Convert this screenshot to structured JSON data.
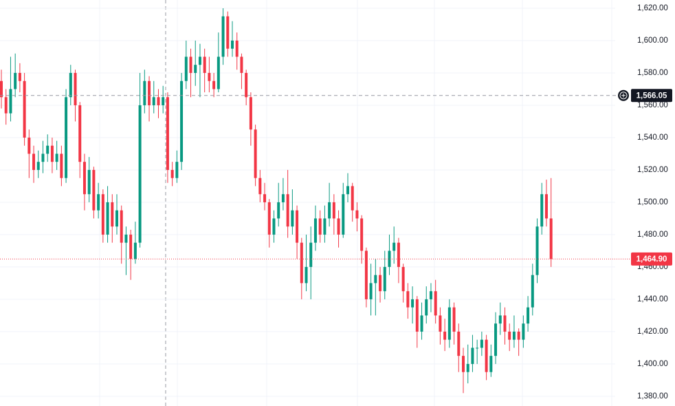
{
  "chart_data": {
    "type": "candlestick",
    "up_color": "#089981",
    "down_color": "#f23645",
    "ylim": [
      1374,
      1625.1
    ],
    "yticks": [
      {
        "value": 1380,
        "label": "1,380.00"
      },
      {
        "value": 1400,
        "label": "1,400.00"
      },
      {
        "value": 1420,
        "label": "1,420.00"
      },
      {
        "value": 1440,
        "label": "1,440.00"
      },
      {
        "value": 1460,
        "label": "1,460.00"
      },
      {
        "value": 1480,
        "label": "1,480.00"
      },
      {
        "value": 1500,
        "label": "1,500.00"
      },
      {
        "value": 1520,
        "label": "1,520.00"
      },
      {
        "value": 1540,
        "label": "1,540.00"
      },
      {
        "value": 1560,
        "label": "1,560.00"
      },
      {
        "value": 1580,
        "label": "1,580.00"
      },
      {
        "value": 1600,
        "label": "1,600.00"
      },
      {
        "value": 1620,
        "label": "1,620.00"
      }
    ],
    "grid": true,
    "crosshair": {
      "value": 1566.05,
      "label": "1,566.05"
    },
    "last_price": {
      "value": 1464.9,
      "label": "1,464.90"
    },
    "open": [
      1575,
      1565,
      1555,
      1570,
      1580,
      1575,
      1540,
      1530,
      1520,
      1525,
      1530,
      1535,
      1525,
      1530,
      1515,
      1565,
      1580,
      1560,
      1525,
      1505,
      1520,
      1495,
      1505,
      1480,
      1500,
      1485,
      1495,
      1475,
      1480,
      1465,
      1475,
      1560,
      1575,
      1560,
      1565,
      1560,
      1565,
      1520,
      1515,
      1525,
      1575,
      1590,
      1580,
      1585,
      1590,
      1580,
      1575,
      1570,
      1590,
      1615,
      1595,
      1600,
      1590,
      1580,
      1565,
      1545,
      1515,
      1505,
      1500,
      1480,
      1490,
      1500,
      1505,
      1485,
      1495,
      1475,
      1450,
      1460,
      1475,
      1490,
      1480,
      1490,
      1500,
      1490,
      1480,
      1505,
      1510,
      1495,
      1490,
      1470,
      1440,
      1450,
      1455,
      1445,
      1460,
      1470,
      1475,
      1460,
      1445,
      1435,
      1440,
      1420,
      1430,
      1440,
      1445,
      1430,
      1420,
      1415,
      1435,
      1420,
      1405,
      1395,
      1400,
      1410,
      1410,
      1415,
      1395,
      1405,
      1425,
      1430,
      1420,
      1415,
      1420,
      1415,
      1425,
      1435,
      1455,
      1485,
      1505,
      1490
    ],
    "high": [
      1582,
      1570,
      1590,
      1592,
      1586,
      1580,
      1545,
      1535,
      1532,
      1538,
      1542,
      1540,
      1538,
      1535,
      1570,
      1585,
      1582,
      1562,
      1530,
      1528,
      1522,
      1512,
      1508,
      1510,
      1505,
      1505,
      1498,
      1485,
      1483,
      1488,
      1580,
      1582,
      1578,
      1575,
      1570,
      1572,
      1568,
      1525,
      1532,
      1580,
      1600,
      1595,
      1600,
      1598,
      1595,
      1590,
      1580,
      1605,
      1620,
      1618,
      1612,
      1605,
      1592,
      1582,
      1568,
      1548,
      1520,
      1512,
      1502,
      1495,
      1512,
      1515,
      1520,
      1508,
      1498,
      1478,
      1480,
      1485,
      1498,
      1495,
      1498,
      1512,
      1505,
      1495,
      1512,
      1518,
      1512,
      1500,
      1492,
      1472,
      1462,
      1465,
      1460,
      1470,
      1480,
      1485,
      1478,
      1462,
      1450,
      1448,
      1442,
      1438,
      1448,
      1450,
      1452,
      1435,
      1428,
      1440,
      1438,
      1425,
      1410,
      1412,
      1418,
      1415,
      1420,
      1418,
      1412,
      1432,
      1438,
      1435,
      1425,
      1430,
      1422,
      1430,
      1442,
      1462,
      1490,
      1512,
      1514,
      1515
    ],
    "low": [
      1558,
      1548,
      1550,
      1565,
      1568,
      1535,
      1515,
      1512,
      1515,
      1518,
      1525,
      1518,
      1520,
      1510,
      1512,
      1560,
      1550,
      1515,
      1495,
      1500,
      1490,
      1490,
      1475,
      1475,
      1475,
      1480,
      1462,
      1455,
      1452,
      1462,
      1472,
      1555,
      1550,
      1555,
      1552,
      1555,
      1512,
      1510,
      1512,
      1520,
      1570,
      1565,
      1572,
      1565,
      1568,
      1568,
      1565,
      1568,
      1585,
      1590,
      1590,
      1582,
      1570,
      1560,
      1535,
      1510,
      1500,
      1495,
      1472,
      1475,
      1485,
      1495,
      1478,
      1480,
      1465,
      1440,
      1445,
      1440,
      1470,
      1475,
      1475,
      1485,
      1480,
      1472,
      1478,
      1500,
      1488,
      1482,
      1462,
      1435,
      1430,
      1430,
      1438,
      1440,
      1455,
      1462,
      1450,
      1438,
      1428,
      1425,
      1410,
      1415,
      1425,
      1432,
      1425,
      1412,
      1408,
      1410,
      1412,
      1395,
      1382,
      1388,
      1395,
      1400,
      1405,
      1390,
      1392,
      1400,
      1418,
      1412,
      1408,
      1410,
      1405,
      1410,
      1420,
      1430,
      1450,
      1480,
      1485,
      1460
    ],
    "close": [
      1565,
      1555,
      1570,
      1580,
      1575,
      1540,
      1530,
      1520,
      1525,
      1530,
      1535,
      1525,
      1530,
      1515,
      1565,
      1580,
      1560,
      1525,
      1505,
      1520,
      1495,
      1505,
      1480,
      1500,
      1485,
      1495,
      1475,
      1480,
      1465,
      1475,
      1560,
      1575,
      1560,
      1565,
      1560,
      1565,
      1520,
      1515,
      1525,
      1575,
      1590,
      1580,
      1585,
      1590,
      1580,
      1575,
      1570,
      1590,
      1615,
      1595,
      1600,
      1590,
      1580,
      1565,
      1545,
      1515,
      1505,
      1500,
      1480,
      1490,
      1500,
      1505,
      1485,
      1495,
      1475,
      1450,
      1460,
      1475,
      1490,
      1480,
      1490,
      1500,
      1490,
      1480,
      1505,
      1510,
      1495,
      1490,
      1470,
      1440,
      1450,
      1455,
      1445,
      1460,
      1470,
      1475,
      1460,
      1445,
      1435,
      1440,
      1420,
      1430,
      1440,
      1445,
      1430,
      1420,
      1415,
      1435,
      1420,
      1405,
      1395,
      1400,
      1410,
      1410,
      1415,
      1395,
      1405,
      1425,
      1430,
      1420,
      1415,
      1420,
      1415,
      1425,
      1435,
      1455,
      1485,
      1505,
      1490,
      1464.9
    ]
  }
}
